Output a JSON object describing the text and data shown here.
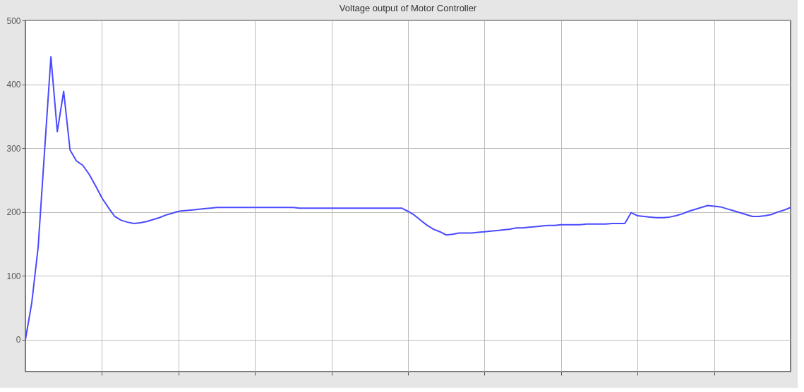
{
  "chart_data": {
    "type": "line",
    "title": "Voltage output of Motor Controller",
    "categories": [
      null,
      null,
      null,
      null,
      null,
      null,
      null,
      null,
      null,
      null,
      null,
      null,
      null,
      null,
      null,
      null,
      null,
      null,
      null,
      null,
      null,
      null,
      null,
      null,
      null,
      null,
      null,
      null,
      null,
      null,
      null,
      null,
      null,
      null,
      null,
      null,
      null,
      null,
      null,
      null,
      null,
      null,
      null,
      null,
      null,
      null,
      null,
      null,
      null,
      null,
      null,
      null,
      null,
      null,
      null,
      null,
      null,
      null,
      null,
      null,
      null,
      null,
      null,
      null,
      null,
      null,
      null,
      null,
      null,
      null,
      null,
      null,
      null,
      null,
      null,
      null,
      null,
      null,
      null,
      null,
      null,
      null,
      null,
      null,
      null,
      null,
      null,
      null,
      null,
      null,
      null,
      null,
      null,
      null,
      null,
      null,
      null,
      null,
      null,
      null,
      null,
      null,
      null,
      null,
      null,
      null,
      null,
      null,
      null,
      null,
      null,
      null,
      null,
      null,
      null,
      null,
      null,
      null,
      null,
      null,
      null
    ],
    "series": [
      {
        "color": "#4a4aff",
        "values": [
          0,
          58,
          145,
          295,
          443,
          326,
          389,
          297,
          280,
          273,
          259,
          241,
          222,
          207,
          193,
          187,
          184,
          182,
          183,
          185,
          188,
          191,
          195,
          198,
          201,
          202,
          203,
          204,
          205,
          206,
          207,
          207,
          207,
          207,
          207,
          207,
          207,
          207,
          207,
          207,
          207,
          207,
          207,
          206,
          206,
          206,
          206,
          206,
          206,
          206,
          206,
          206,
          206,
          206,
          206,
          206,
          206,
          206,
          206,
          206,
          201,
          195,
          187,
          179,
          173,
          169,
          164,
          165,
          167,
          167,
          167,
          168,
          169,
          170,
          171,
          172,
          173,
          175,
          175,
          176,
          177,
          178,
          179,
          179,
          180,
          180,
          180,
          180,
          181,
          181,
          181,
          181,
          182,
          182,
          182,
          199,
          194,
          193,
          192,
          191,
          191,
          192,
          194,
          197,
          201,
          204,
          207,
          210,
          209,
          208,
          205,
          202,
          199,
          196,
          193,
          193,
          194,
          196,
          200,
          203,
          207
        ]
      }
    ],
    "ylim": [
      -50,
      500
    ],
    "yticks": [
      0,
      100,
      200,
      300,
      400,
      500
    ],
    "grid": true,
    "line_style": "solid",
    "marker": "none"
  }
}
